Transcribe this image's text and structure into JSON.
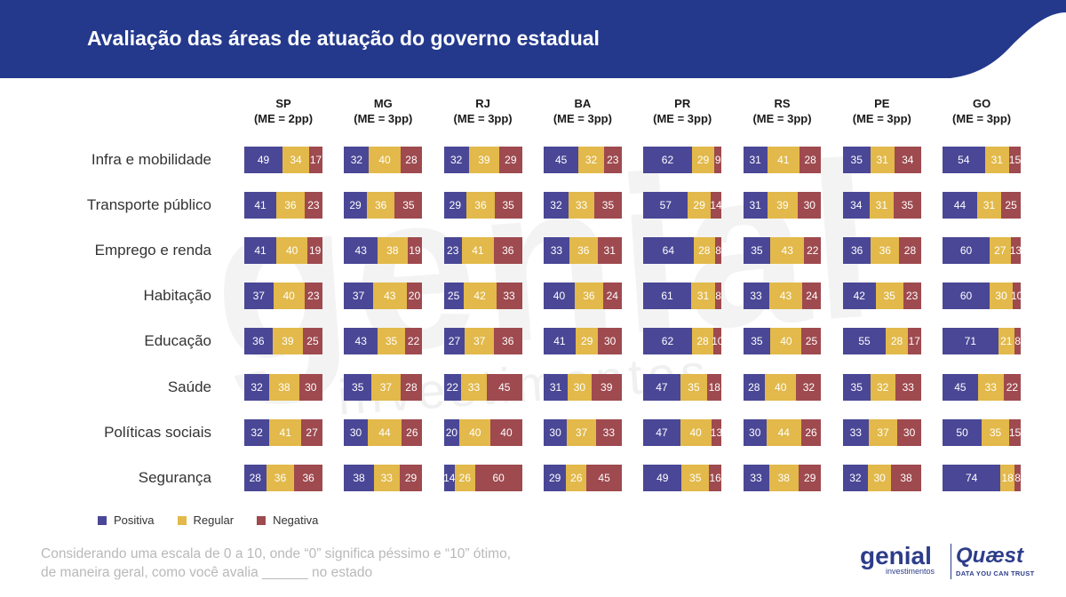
{
  "title": "Avaliação das áreas de atuação do governo estadual",
  "watermark": {
    "main": "genial",
    "sub": "investimentos"
  },
  "colors": {
    "positiva": "#4a4796",
    "regular": "#e2b94a",
    "negativa": "#9e4a4f",
    "header": "#24398c"
  },
  "footnote": {
    "line1": "Considerando uma escala de 0 a 10, onde “0” significa péssimo e “10” ótimo,",
    "line2": "de maneira geral, como você avalia ______ no estado"
  },
  "logos": {
    "genial": {
      "main": "genial",
      "sub": "investimentos"
    },
    "quaest": {
      "main": "Quæst",
      "sub": "DATA YOU CAN TRUST"
    }
  },
  "chart_data": {
    "type": "bar",
    "orientation": "horizontal-stacked-100",
    "title": "Avaliação das áreas de atuação do governo estadual",
    "legend_position": "bottom-left",
    "legend": [
      "Positiva",
      "Regular",
      "Negativa"
    ],
    "categories": [
      "Infra e mobilidade",
      "Transporte público",
      "Emprego e renda",
      "Habitação",
      "Educação",
      "Saúde",
      "Políticas sociais",
      "Segurança"
    ],
    "states": [
      {
        "state": "SP",
        "me": "(ME = 2pp)",
        "values": [
          [
            49,
            34,
            17
          ],
          [
            41,
            36,
            23
          ],
          [
            41,
            40,
            19
          ],
          [
            37,
            40,
            23
          ],
          [
            36,
            39,
            25
          ],
          [
            32,
            38,
            30
          ],
          [
            32,
            41,
            27
          ],
          [
            28,
            36,
            36
          ]
        ]
      },
      {
        "state": "MG",
        "me": "(ME = 3pp)",
        "values": [
          [
            32,
            40,
            28
          ],
          [
            29,
            36,
            35
          ],
          [
            43,
            38,
            19
          ],
          [
            37,
            43,
            20
          ],
          [
            43,
            35,
            22
          ],
          [
            35,
            37,
            28
          ],
          [
            30,
            44,
            26
          ],
          [
            38,
            33,
            29
          ]
        ]
      },
      {
        "state": "RJ",
        "me": "(ME = 3pp)",
        "values": [
          [
            32,
            39,
            29
          ],
          [
            29,
            36,
            35
          ],
          [
            23,
            41,
            36
          ],
          [
            25,
            42,
            33
          ],
          [
            27,
            37,
            36
          ],
          [
            22,
            33,
            45
          ],
          [
            20,
            40,
            40
          ],
          [
            14,
            26,
            60
          ]
        ]
      },
      {
        "state": "BA",
        "me": "(ME = 3pp)",
        "values": [
          [
            45,
            32,
            23
          ],
          [
            32,
            33,
            35
          ],
          [
            33,
            36,
            31
          ],
          [
            40,
            36,
            24
          ],
          [
            41,
            29,
            30
          ],
          [
            31,
            30,
            39
          ],
          [
            30,
            37,
            33
          ],
          [
            29,
            26,
            45
          ]
        ]
      },
      {
        "state": "PR",
        "me": "(ME = 3pp)",
        "values": [
          [
            62,
            29,
            9
          ],
          [
            57,
            29,
            14
          ],
          [
            64,
            28,
            8
          ],
          [
            61,
            31,
            8
          ],
          [
            62,
            28,
            10
          ],
          [
            47,
            35,
            18
          ],
          [
            47,
            40,
            13
          ],
          [
            49,
            35,
            16
          ]
        ]
      },
      {
        "state": "RS",
        "me": "(ME = 3pp)",
        "values": [
          [
            31,
            41,
            28
          ],
          [
            31,
            39,
            30
          ],
          [
            35,
            43,
            22
          ],
          [
            33,
            43,
            24
          ],
          [
            35,
            40,
            25
          ],
          [
            28,
            40,
            32
          ],
          [
            30,
            44,
            26
          ],
          [
            33,
            38,
            29
          ]
        ]
      },
      {
        "state": "PE",
        "me": "(ME = 3pp)",
        "values": [
          [
            35,
            31,
            34
          ],
          [
            34,
            31,
            35
          ],
          [
            36,
            36,
            28
          ],
          [
            42,
            35,
            23
          ],
          [
            55,
            28,
            17
          ],
          [
            35,
            32,
            33
          ],
          [
            33,
            37,
            30
          ],
          [
            32,
            30,
            38
          ]
        ]
      },
      {
        "state": "GO",
        "me": "(ME = 3pp)",
        "values": [
          [
            54,
            31,
            15
          ],
          [
            44,
            31,
            25
          ],
          [
            60,
            27,
            13
          ],
          [
            60,
            30,
            10
          ],
          [
            71,
            21,
            8
          ],
          [
            45,
            33,
            22
          ],
          [
            50,
            35,
            15
          ],
          [
            74,
            18,
            8
          ]
        ]
      }
    ]
  }
}
